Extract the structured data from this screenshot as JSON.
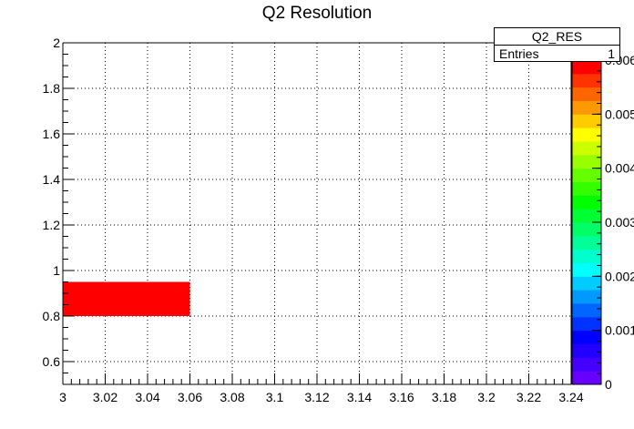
{
  "chart_data": {
    "type": "heatmap",
    "title": "Q2 Resolution",
    "xlabel": "",
    "ylabel": "",
    "xlim": [
      3.0,
      3.24
    ],
    "ylim": [
      0.5,
      2.0
    ],
    "x_ticks": [
      "3",
      "3.02",
      "3.04",
      "3.06",
      "3.08",
      "3.1",
      "3.12",
      "3.14",
      "3.16",
      "3.18",
      "3.2",
      "3.22",
      "3.24"
    ],
    "y_ticks": [
      "0.6",
      "0.8",
      "1",
      "1.2",
      "1.4",
      "1.6",
      "1.8",
      "2"
    ],
    "grid": true,
    "cells": [
      {
        "x0": 3.0,
        "x1": 3.06,
        "y0": 0.8,
        "y1": 0.95,
        "value": 0.006
      }
    ],
    "colorbar": {
      "min": 0,
      "max": 0.006,
      "tick_labels": [
        "0",
        "0.001",
        "0.002",
        "0.003",
        "0.004",
        "0.005",
        "0.006"
      ],
      "palette": [
        "#6600ff",
        "#4400ff",
        "#2200ff",
        "#0000ff",
        "#0033ff",
        "#0066ff",
        "#0099ff",
        "#00ccff",
        "#00ffff",
        "#00ffcc",
        "#00ff99",
        "#00ff66",
        "#00ff33",
        "#00ff00",
        "#33ff00",
        "#66ff00",
        "#99ff00",
        "#ccff00",
        "#ffff00",
        "#ffcc00",
        "#ff9900",
        "#ff6600",
        "#ff3300",
        "#ff0000"
      ]
    }
  },
  "stats": {
    "name": "Q2_RES",
    "entries_label": "Entries",
    "entries_value": "1"
  }
}
